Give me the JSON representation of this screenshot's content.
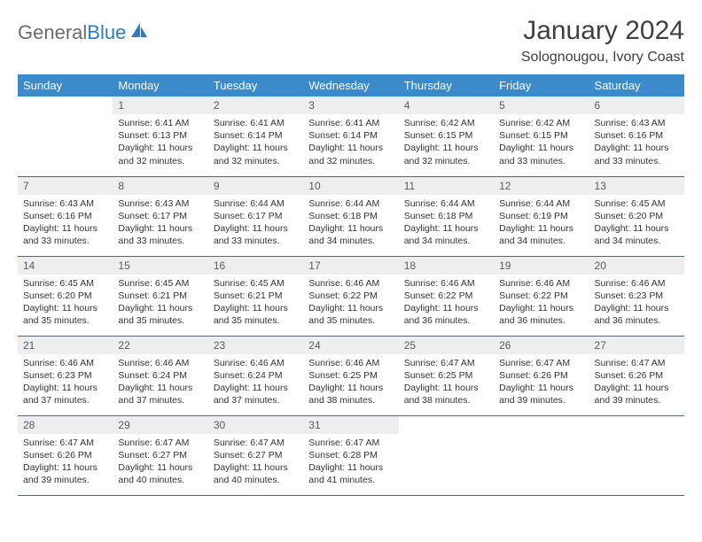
{
  "brand": {
    "part1": "General",
    "part2": "Blue"
  },
  "title": "January 2024",
  "location": "Solognougou, Ivory Coast",
  "colors": {
    "header_bg": "#3b8bca",
    "header_text": "#ffffff",
    "daynum_bg": "#eceef0",
    "rule": "#2f6fa8",
    "logo_gray": "#6b6b6b",
    "logo_blue": "#2d7cc1"
  },
  "weekdays": [
    "Sunday",
    "Monday",
    "Tuesday",
    "Wednesday",
    "Thursday",
    "Friday",
    "Saturday"
  ],
  "start_offset": 1,
  "days": [
    {
      "n": "1",
      "sr": "Sunrise: 6:41 AM",
      "ss": "Sunset: 6:13 PM",
      "dl": "Daylight: 11 hours and 32 minutes."
    },
    {
      "n": "2",
      "sr": "Sunrise: 6:41 AM",
      "ss": "Sunset: 6:14 PM",
      "dl": "Daylight: 11 hours and 32 minutes."
    },
    {
      "n": "3",
      "sr": "Sunrise: 6:41 AM",
      "ss": "Sunset: 6:14 PM",
      "dl": "Daylight: 11 hours and 32 minutes."
    },
    {
      "n": "4",
      "sr": "Sunrise: 6:42 AM",
      "ss": "Sunset: 6:15 PM",
      "dl": "Daylight: 11 hours and 32 minutes."
    },
    {
      "n": "5",
      "sr": "Sunrise: 6:42 AM",
      "ss": "Sunset: 6:15 PM",
      "dl": "Daylight: 11 hours and 33 minutes."
    },
    {
      "n": "6",
      "sr": "Sunrise: 6:43 AM",
      "ss": "Sunset: 6:16 PM",
      "dl": "Daylight: 11 hours and 33 minutes."
    },
    {
      "n": "7",
      "sr": "Sunrise: 6:43 AM",
      "ss": "Sunset: 6:16 PM",
      "dl": "Daylight: 11 hours and 33 minutes."
    },
    {
      "n": "8",
      "sr": "Sunrise: 6:43 AM",
      "ss": "Sunset: 6:17 PM",
      "dl": "Daylight: 11 hours and 33 minutes."
    },
    {
      "n": "9",
      "sr": "Sunrise: 6:44 AM",
      "ss": "Sunset: 6:17 PM",
      "dl": "Daylight: 11 hours and 33 minutes."
    },
    {
      "n": "10",
      "sr": "Sunrise: 6:44 AM",
      "ss": "Sunset: 6:18 PM",
      "dl": "Daylight: 11 hours and 34 minutes."
    },
    {
      "n": "11",
      "sr": "Sunrise: 6:44 AM",
      "ss": "Sunset: 6:18 PM",
      "dl": "Daylight: 11 hours and 34 minutes."
    },
    {
      "n": "12",
      "sr": "Sunrise: 6:44 AM",
      "ss": "Sunset: 6:19 PM",
      "dl": "Daylight: 11 hours and 34 minutes."
    },
    {
      "n": "13",
      "sr": "Sunrise: 6:45 AM",
      "ss": "Sunset: 6:20 PM",
      "dl": "Daylight: 11 hours and 34 minutes."
    },
    {
      "n": "14",
      "sr": "Sunrise: 6:45 AM",
      "ss": "Sunset: 6:20 PM",
      "dl": "Daylight: 11 hours and 35 minutes."
    },
    {
      "n": "15",
      "sr": "Sunrise: 6:45 AM",
      "ss": "Sunset: 6:21 PM",
      "dl": "Daylight: 11 hours and 35 minutes."
    },
    {
      "n": "16",
      "sr": "Sunrise: 6:45 AM",
      "ss": "Sunset: 6:21 PM",
      "dl": "Daylight: 11 hours and 35 minutes."
    },
    {
      "n": "17",
      "sr": "Sunrise: 6:46 AM",
      "ss": "Sunset: 6:22 PM",
      "dl": "Daylight: 11 hours and 35 minutes."
    },
    {
      "n": "18",
      "sr": "Sunrise: 6:46 AM",
      "ss": "Sunset: 6:22 PM",
      "dl": "Daylight: 11 hours and 36 minutes."
    },
    {
      "n": "19",
      "sr": "Sunrise: 6:46 AM",
      "ss": "Sunset: 6:22 PM",
      "dl": "Daylight: 11 hours and 36 minutes."
    },
    {
      "n": "20",
      "sr": "Sunrise: 6:46 AM",
      "ss": "Sunset: 6:23 PM",
      "dl": "Daylight: 11 hours and 36 minutes."
    },
    {
      "n": "21",
      "sr": "Sunrise: 6:46 AM",
      "ss": "Sunset: 6:23 PM",
      "dl": "Daylight: 11 hours and 37 minutes."
    },
    {
      "n": "22",
      "sr": "Sunrise: 6:46 AM",
      "ss": "Sunset: 6:24 PM",
      "dl": "Daylight: 11 hours and 37 minutes."
    },
    {
      "n": "23",
      "sr": "Sunrise: 6:46 AM",
      "ss": "Sunset: 6:24 PM",
      "dl": "Daylight: 11 hours and 37 minutes."
    },
    {
      "n": "24",
      "sr": "Sunrise: 6:46 AM",
      "ss": "Sunset: 6:25 PM",
      "dl": "Daylight: 11 hours and 38 minutes."
    },
    {
      "n": "25",
      "sr": "Sunrise: 6:47 AM",
      "ss": "Sunset: 6:25 PM",
      "dl": "Daylight: 11 hours and 38 minutes."
    },
    {
      "n": "26",
      "sr": "Sunrise: 6:47 AM",
      "ss": "Sunset: 6:26 PM",
      "dl": "Daylight: 11 hours and 39 minutes."
    },
    {
      "n": "27",
      "sr": "Sunrise: 6:47 AM",
      "ss": "Sunset: 6:26 PM",
      "dl": "Daylight: 11 hours and 39 minutes."
    },
    {
      "n": "28",
      "sr": "Sunrise: 6:47 AM",
      "ss": "Sunset: 6:26 PM",
      "dl": "Daylight: 11 hours and 39 minutes."
    },
    {
      "n": "29",
      "sr": "Sunrise: 6:47 AM",
      "ss": "Sunset: 6:27 PM",
      "dl": "Daylight: 11 hours and 40 minutes."
    },
    {
      "n": "30",
      "sr": "Sunrise: 6:47 AM",
      "ss": "Sunset: 6:27 PM",
      "dl": "Daylight: 11 hours and 40 minutes."
    },
    {
      "n": "31",
      "sr": "Sunrise: 6:47 AM",
      "ss": "Sunset: 6:28 PM",
      "dl": "Daylight: 11 hours and 41 minutes."
    }
  ]
}
